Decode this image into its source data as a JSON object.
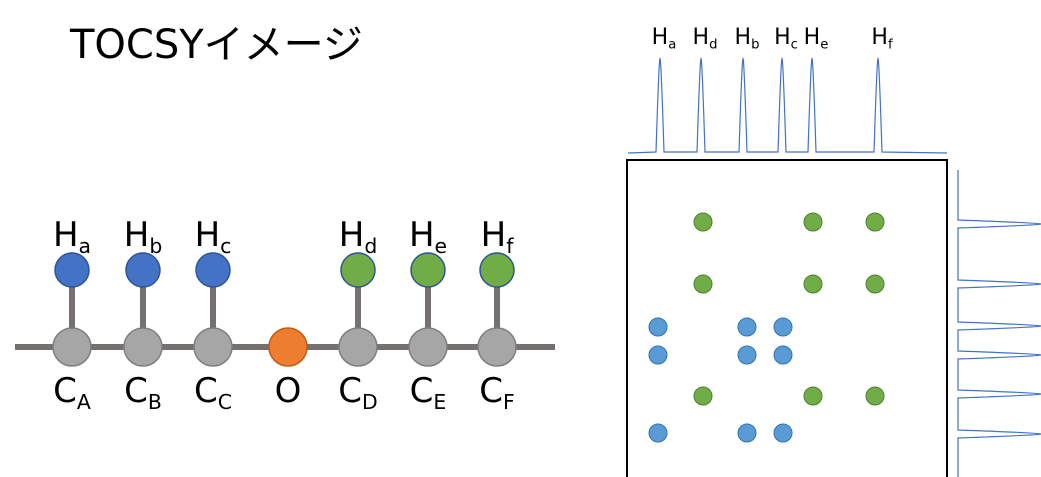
{
  "title": "TOCSYイメージ",
  "molecule": {
    "hydrogens": [
      {
        "base": "H",
        "sub": "a"
      },
      {
        "base": "H",
        "sub": "b"
      },
      {
        "base": "H",
        "sub": "c"
      },
      {
        "base": "H",
        "sub": "d"
      },
      {
        "base": "H",
        "sub": "e"
      },
      {
        "base": "H",
        "sub": "f"
      }
    ],
    "backbone": [
      {
        "base": "C",
        "sub": "A"
      },
      {
        "base": "C",
        "sub": "B"
      },
      {
        "base": "C",
        "sub": "C"
      },
      {
        "base": "O"
      },
      {
        "base": "C",
        "sub": "D"
      },
      {
        "base": "C",
        "sub": "E"
      },
      {
        "base": "C",
        "sub": "F"
      }
    ]
  },
  "spectrum": {
    "peak_labels": [
      {
        "base": "H",
        "sub": "a"
      },
      {
        "base": "H",
        "sub": "d"
      },
      {
        "base": "H",
        "sub": "b"
      },
      {
        "base": "H",
        "sub": "c"
      },
      {
        "base": "H",
        "sub": "e"
      },
      {
        "base": "H",
        "sub": "f"
      }
    ]
  }
}
